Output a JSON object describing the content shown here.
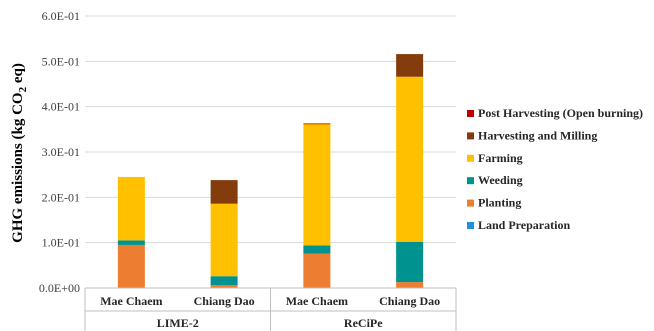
{
  "chart_data": {
    "type": "bar",
    "stacked": true,
    "ylabel_prefix": "GHG emissions (kg CO",
    "ylabel_sub": "2",
    "ylabel_suffix": " eq)",
    "ylim": [
      0,
      0.6
    ],
    "yticks": [
      "0.0E+00",
      "1.0E-01",
      "2.0E-01",
      "3.0E-01",
      "4.0E-01",
      "5.0E-01",
      "6.0E-01"
    ],
    "groups": [
      "LIME-2",
      "ReCiPe"
    ],
    "categories": [
      "Mae Chaem",
      "Chiang Dao",
      "Mae Chaem",
      "Chiang Dao"
    ],
    "series": [
      {
        "name": "Land Preparation",
        "color": "#1F8FDF",
        "values": [
          0.0,
          0.0,
          0.0,
          0.0
        ]
      },
      {
        "name": "Planting",
        "color": "#ED7D31",
        "values": [
          0.095,
          0.006,
          0.076,
          0.013
        ]
      },
      {
        "name": "Weeding",
        "color": "#00928F",
        "values": [
          0.01,
          0.02,
          0.018,
          0.089
        ]
      },
      {
        "name": "Farming",
        "color": "#FFC000",
        "values": [
          0.14,
          0.16,
          0.268,
          0.364
        ]
      },
      {
        "name": "Harvesting and Milling",
        "color": "#843C0C",
        "values": [
          0.0,
          0.052,
          0.0,
          0.05
        ]
      },
      {
        "name": "Post Harvesting (Open burning)",
        "color": "#C00000",
        "values": [
          0.0,
          0.0,
          0.001,
          0.0
        ]
      }
    ],
    "legend_position": "right",
    "grid": true
  }
}
